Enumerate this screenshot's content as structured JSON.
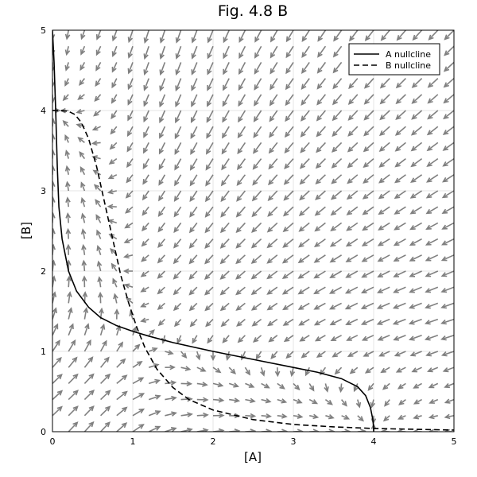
{
  "chart_data": {
    "type": "line",
    "title": "Fig. 4.8 B",
    "xlabel": "[A]",
    "ylabel": "[B]",
    "xlim": [
      0,
      5
    ],
    "ylim": [
      0,
      5
    ],
    "x_ticks": [
      "0",
      "1",
      "2",
      "3",
      "4",
      "5"
    ],
    "y_ticks": [
      "0",
      "1",
      "2",
      "3",
      "4",
      "5"
    ],
    "grid": true,
    "legend_position": "top-right",
    "background": "vector-field",
    "arrow_color": "#808080",
    "series": [
      {
        "name": "A nullcline",
        "style": "solid",
        "color": "#000000",
        "x": [
          0.0,
          0.02,
          0.04,
          0.06,
          0.08,
          0.12,
          0.2,
          0.3,
          0.45,
          0.6,
          0.8,
          1.0,
          1.2,
          1.5,
          2.0,
          2.5,
          3.0,
          3.3,
          3.6,
          3.8,
          3.9,
          3.96,
          3.99,
          4.0,
          4.0
        ],
        "y": [
          5.0,
          4.6,
          4.0,
          3.3,
          2.8,
          2.4,
          2.0,
          1.75,
          1.55,
          1.42,
          1.32,
          1.25,
          1.19,
          1.11,
          1.0,
          0.9,
          0.8,
          0.74,
          0.66,
          0.56,
          0.45,
          0.3,
          0.15,
          0.05,
          0.0
        ]
      },
      {
        "name": "B nullcline",
        "style": "dashed",
        "color": "#000000",
        "x": [
          0.0,
          0.1,
          0.2,
          0.28,
          0.36,
          0.45,
          0.55,
          0.65,
          0.75,
          0.85,
          0.95,
          1.05,
          1.15,
          1.3,
          1.5,
          1.7,
          2.0,
          2.5,
          3.0,
          3.5,
          4.0,
          4.5,
          5.0
        ],
        "y": [
          4.0,
          4.0,
          3.99,
          3.95,
          3.85,
          3.65,
          3.3,
          2.85,
          2.4,
          1.95,
          1.6,
          1.3,
          1.05,
          0.78,
          0.55,
          0.4,
          0.27,
          0.15,
          0.09,
          0.06,
          0.04,
          0.03,
          0.02
        ]
      }
    ]
  }
}
